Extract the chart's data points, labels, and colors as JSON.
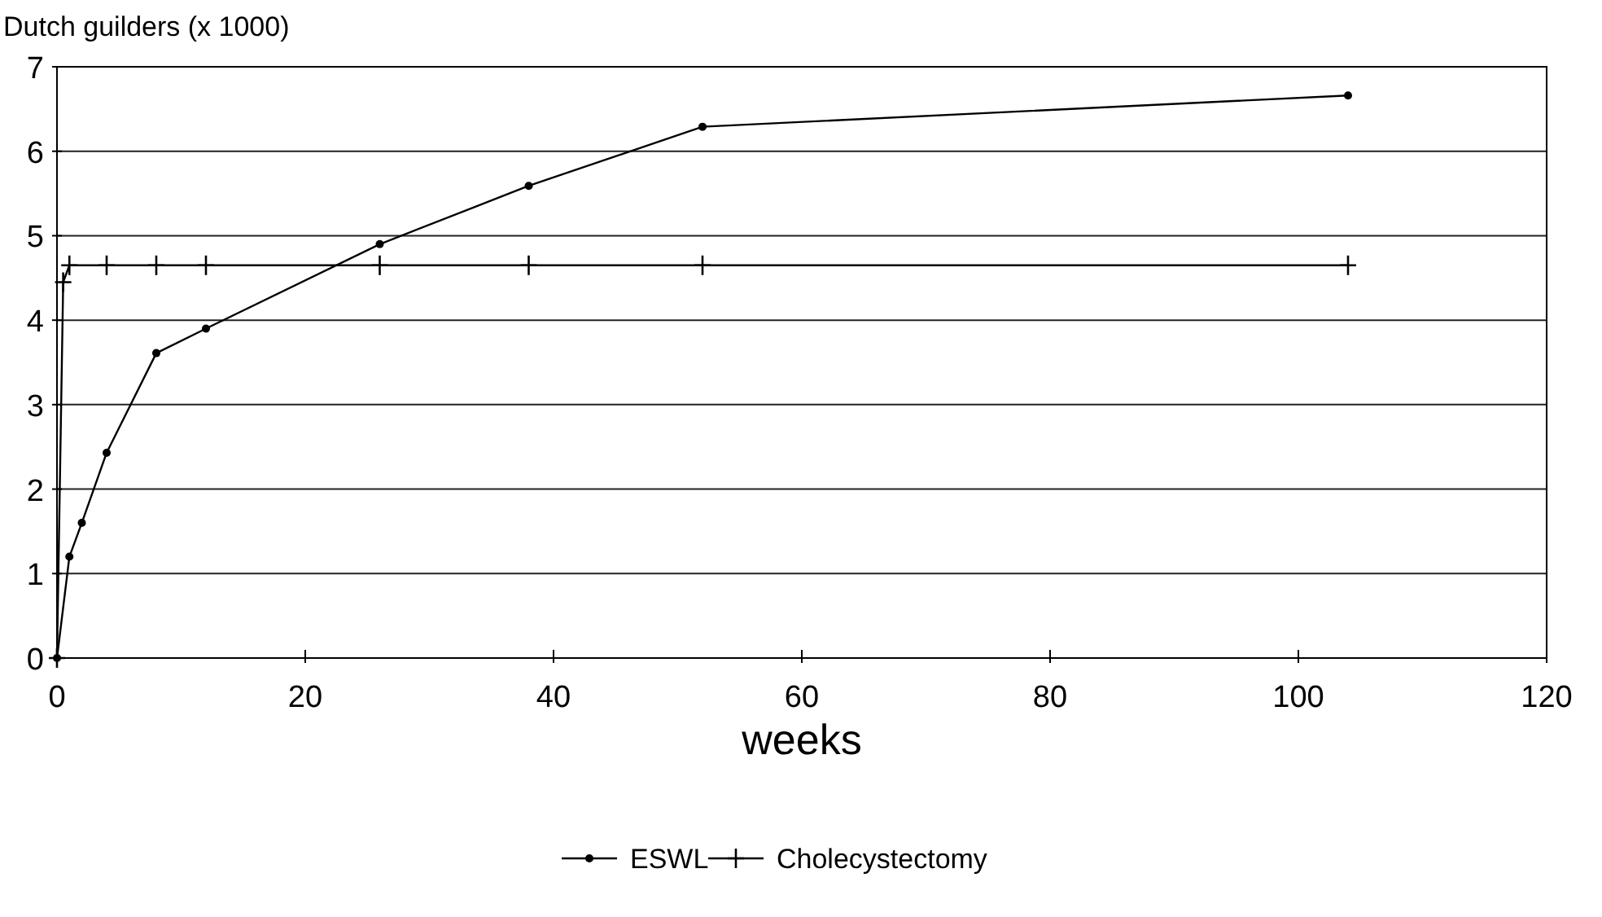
{
  "chart_data": {
    "type": "line",
    "ylabel": "Dutch guilders (x 1000)",
    "xlabel": "weeks",
    "xlim": [
      0,
      120
    ],
    "xticks": [
      0,
      20,
      40,
      60,
      80,
      100,
      120
    ],
    "ylim": [
      0,
      7
    ],
    "yticks": [
      0,
      1,
      2,
      3,
      4,
      5,
      6,
      7
    ],
    "grid": "y",
    "legend": "bottom",
    "series": [
      {
        "name": "ESWL",
        "color": "#000000",
        "marker": "circle",
        "x": [
          0,
          1,
          2,
          4,
          8,
          12,
          26,
          38,
          52,
          104
        ],
        "values": [
          0,
          1.2,
          1.6,
          2.43,
          3.61,
          3.9,
          4.9,
          5.59,
          6.29,
          6.66
        ]
      },
      {
        "name": "Cholecystectomy",
        "color": "#000000",
        "marker": "cross",
        "x": [
          0,
          0.5,
          1,
          4,
          8,
          12,
          26,
          38,
          52,
          104
        ],
        "values": [
          0,
          4.45,
          4.65,
          4.65,
          4.65,
          4.65,
          4.65,
          4.65,
          4.65,
          4.65
        ]
      }
    ]
  }
}
